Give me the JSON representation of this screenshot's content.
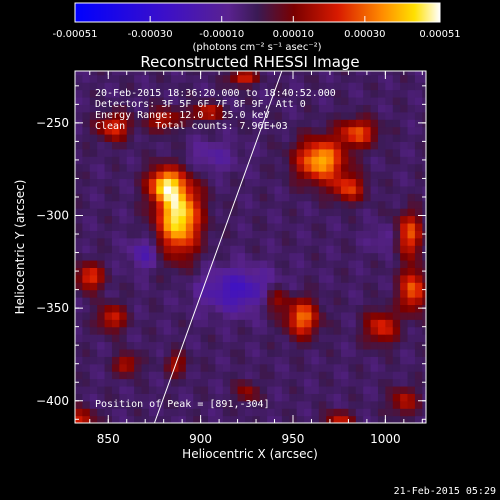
{
  "chart_data": {
    "type": "heatmap",
    "title": "Reconstructed RHESSI Image",
    "xlabel": "Heliocentric X (arcsec)",
    "ylabel": "Heliocentric Y (arcsec)",
    "xlim": [
      832,
      1022
    ],
    "ylim": [
      -412,
      -222
    ],
    "x_ticks": [
      850,
      900,
      950,
      1000
    ],
    "x_tick_labels": [
      "850",
      "900",
      "950",
      "1000"
    ],
    "y_ticks": [
      -250,
      -300,
      -350,
      -400
    ],
    "y_tick_labels": [
      "−250",
      "−300",
      "−350",
      "−400"
    ],
    "colorbar": {
      "range": [
        -0.00051,
        0.00051
      ],
      "ticks": [
        -0.00051,
        -0.0003,
        -0.0001,
        0.0001,
        0.0003,
        0.00051
      ],
      "tick_labels": [
        "-0.00051",
        "-0.00030",
        "-0.00010",
        "0.00010",
        "0.00030",
        "0.00051"
      ],
      "units_label": "(photons cm⁻² s⁻¹ asec⁻²)"
    },
    "annotations": [
      "20-Feb-2015 18:36:20.000 to 18:40:52.000",
      "Detectors: 3F 5F 6F 7F 8F 9F, Att 0",
      "Energy Range: 12.0 - 25.0 keV",
      "Clean     Total counts: 7.96E+03",
      "Position of Peak = [891,-304]"
    ],
    "limb_line": {
      "x": [
        875,
        944
      ],
      "y": [
        -412,
        -222
      ]
    },
    "sources": [
      {
        "x": 888,
        "y": -300,
        "amp": 0.00051,
        "sx": 8,
        "sy": 14
      },
      {
        "x": 880,
        "y": -283,
        "amp": 0.00036,
        "sx": 6,
        "sy": 6
      },
      {
        "x": 853,
        "y": -252,
        "amp": 0.00026,
        "sx": 6,
        "sy": 5
      },
      {
        "x": 880,
        "y": -248,
        "amp": 0.00022,
        "sx": 6,
        "sy": 4
      },
      {
        "x": 903,
        "y": -244,
        "amp": 0.00024,
        "sx": 6,
        "sy": 3
      },
      {
        "x": 923,
        "y": -225,
        "amp": 0.00026,
        "sx": 5,
        "sy": 3
      },
      {
        "x": 965,
        "y": -270,
        "amp": 0.00042,
        "sx": 9,
        "sy": 8
      },
      {
        "x": 985,
        "y": -255,
        "amp": 0.0003,
        "sx": 7,
        "sy": 5
      },
      {
        "x": 980,
        "y": -285,
        "amp": 0.00026,
        "sx": 6,
        "sy": 5
      },
      {
        "x": 1013,
        "y": -310,
        "amp": 0.0003,
        "sx": 5,
        "sy": 8
      },
      {
        "x": 1015,
        "y": -340,
        "amp": 0.00032,
        "sx": 5,
        "sy": 8
      },
      {
        "x": 998,
        "y": -360,
        "amp": 0.00026,
        "sx": 6,
        "sy": 6
      },
      {
        "x": 955,
        "y": -355,
        "amp": 0.00034,
        "sx": 6,
        "sy": 7
      },
      {
        "x": 940,
        "y": -345,
        "amp": 0.00018,
        "sx": 5,
        "sy": 5
      },
      {
        "x": 840,
        "y": -333,
        "amp": 0.00028,
        "sx": 5,
        "sy": 5
      },
      {
        "x": 852,
        "y": -355,
        "amp": 0.00024,
        "sx": 5,
        "sy": 5
      },
      {
        "x": 860,
        "y": -380,
        "amp": 0.00022,
        "sx": 4,
        "sy": 4
      },
      {
        "x": 887,
        "y": -380,
        "amp": 0.00018,
        "sx": 4,
        "sy": 4
      },
      {
        "x": 835,
        "y": -410,
        "amp": 0.00024,
        "sx": 5,
        "sy": 4
      },
      {
        "x": 975,
        "y": -410,
        "amp": 0.00022,
        "sx": 5,
        "sy": 3
      },
      {
        "x": 1010,
        "y": -400,
        "amp": 0.0002,
        "sx": 5,
        "sy": 5
      },
      {
        "x": 925,
        "y": -395,
        "amp": 0.00016,
        "sx": 4,
        "sy": 4
      },
      {
        "x": 920,
        "y": -340,
        "amp": -0.0002,
        "sx": 14,
        "sy": 8
      },
      {
        "x": 870,
        "y": -320,
        "amp": -0.00014,
        "sx": 6,
        "sy": 6
      },
      {
        "x": 905,
        "y": -268,
        "amp": -0.0001,
        "sx": 10,
        "sy": 6
      },
      {
        "x": 1000,
        "y": -312,
        "amp": -8e-05,
        "sx": 6,
        "sy": 5
      }
    ]
  },
  "footer": {
    "timestamp": "21-Feb-2015 05:29"
  }
}
